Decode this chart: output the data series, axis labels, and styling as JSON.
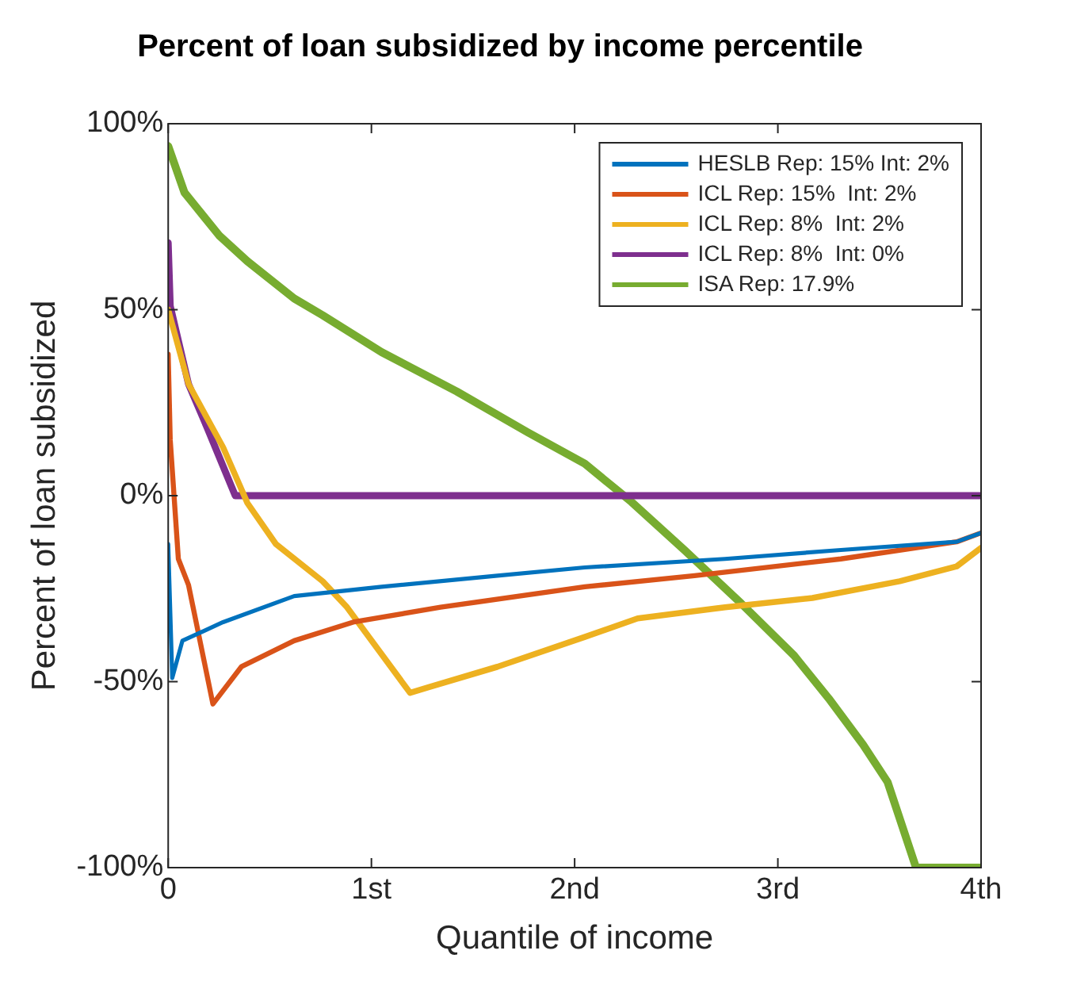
{
  "chart_data": {
    "type": "line",
    "title": "Percent of loan subsidized by income percentile",
    "xlabel": "Quantile of income",
    "ylabel": "Percent of loan subsidized",
    "xlim": [
      0,
      4
    ],
    "xticks": [
      0,
      {
        "value": 1,
        "label": "1st"
      },
      {
        "value": 2,
        "label": "2nd"
      },
      {
        "value": 3,
        "label": "3rd"
      },
      {
        "value": 4,
        "label": "4th"
      }
    ],
    "ylim": [
      -100,
      100
    ],
    "yticks": [
      {
        "value": -100,
        "label": "-100%"
      },
      {
        "value": -50,
        "label": "-50%"
      },
      {
        "value": 0,
        "label": "0%"
      },
      {
        "value": 50,
        "label": "50%"
      },
      {
        "value": 100,
        "label": "100%"
      }
    ],
    "grid": false,
    "legend": "top right",
    "marker": "none",
    "line_style": "solid",
    "series": [
      {
        "name": "HESLB Rep: 15% Int: 2%",
        "color": "#0072bd",
        "x": [
          0,
          0.02,
          0.07,
          0.27,
          0.62,
          1.05,
          1.62,
          2.05,
          2.74,
          3.31,
          3.88,
          4
        ],
        "values": [
          -13,
          -49,
          -39,
          -34,
          -27,
          -24.5,
          -21.5,
          -19.3,
          -17,
          -14.6,
          -12.4,
          -10
        ]
      },
      {
        "name": "ICL Rep: 15%  Int: 2%",
        "color": "#d95319",
        "x": [
          0,
          0.01,
          0.05,
          0.1,
          0.22,
          0.36,
          0.62,
          0.91,
          1.34,
          2.05,
          2.59,
          3.31,
          3.88,
          4
        ],
        "values": [
          38,
          15,
          -17,
          -24,
          -56,
          -46,
          -39,
          -34,
          -30,
          -24.5,
          -21.5,
          -17,
          -12.4,
          -10
        ]
      },
      {
        "name": "ICL Rep: 8%  Int: 2%",
        "color": "#edb120",
        "x": [
          0,
          0.1,
          0.27,
          0.39,
          0.53,
          0.76,
          0.88,
          1.19,
          1.28,
          1.62,
          2.05,
          2.31,
          2.74,
          3.17,
          3.6,
          3.88,
          4
        ],
        "values": [
          50,
          30,
          13,
          -2,
          -13,
          -23,
          -30,
          -53,
          -51.5,
          -46,
          -38,
          -33,
          -30,
          -27.5,
          -23,
          -19,
          -14
        ]
      },
      {
        "name": "ICL Rep: 8%  Int: 0%",
        "color": "#7e2f8e",
        "x": [
          0,
          0.01,
          0.1,
          0.19,
          0.33,
          4
        ],
        "values": [
          68,
          51,
          30,
          18.5,
          0,
          0
        ]
      },
      {
        "name": "ISA Rep: 17.9%",
        "color": "#77ac30",
        "x": [
          0,
          0.08,
          0.25,
          0.39,
          0.62,
          0.76,
          1.05,
          1.42,
          1.77,
          2.05,
          2.28,
          2.54,
          2.82,
          3.08,
          3.25,
          3.42,
          3.54,
          3.68,
          4
        ],
        "values": [
          94,
          81.5,
          70,
          63,
          53,
          48.5,
          38.6,
          28,
          17,
          8.6,
          -1.7,
          -14.6,
          -29,
          -43,
          -54.5,
          -67,
          -77,
          -100,
          -100
        ]
      }
    ]
  }
}
